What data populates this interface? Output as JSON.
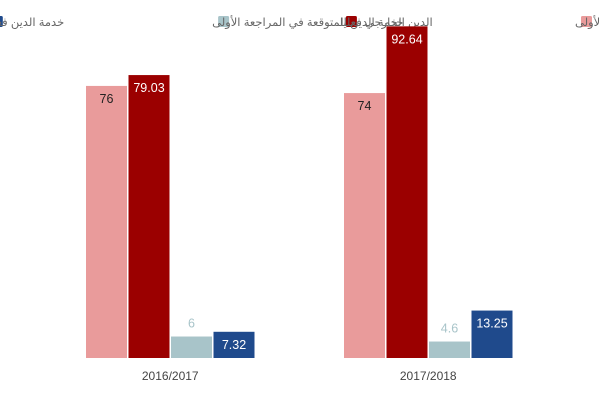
{
  "chart_data": {
    "type": "bar",
    "title": "",
    "xlabel": "",
    "ylabel": "",
    "categories": [
      "2016/2017",
      "2017/2018"
    ],
    "series": [
      {
        "name": "الدين الخارجي المتوقع في المراجعة الأولى",
        "values": [
          76,
          74
        ],
        "color": "#e99b9b",
        "label_color": "#222222"
      },
      {
        "name": "الدين الخارجي فعليا",
        "values": [
          79.03,
          92.64
        ],
        "color": "#9b0000",
        "label_color": "#ffffff"
      },
      {
        "name": "خدمة الدين المتوقعة في المراجعة الأولى",
        "values": [
          6,
          4.6
        ],
        "color": "#a8c4c9",
        "label_color": "#222222"
      },
      {
        "name": "خدمة الدين فعليا",
        "values": [
          7.32,
          13.25
        ],
        "color": "#1f4a8c",
        "label_color": "#ffffff"
      }
    ],
    "data_labels": [
      [
        "76",
        "74"
      ],
      [
        "79.03",
        "92.64"
      ],
      [
        "6",
        "4.6"
      ],
      [
        "7.32",
        "13.25"
      ]
    ],
    "ylim": [
      0,
      100
    ],
    "grid": false,
    "legend_position": "top"
  }
}
